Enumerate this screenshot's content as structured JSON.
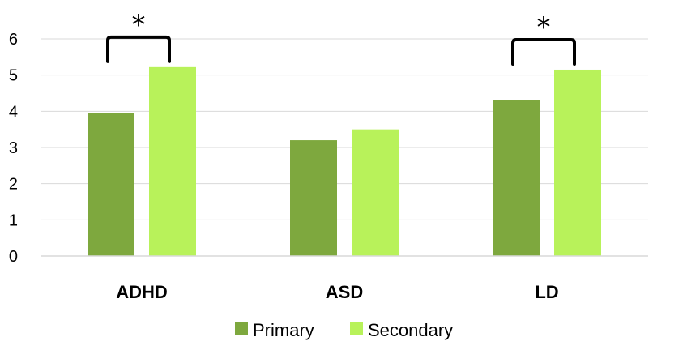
{
  "chart_data": {
    "type": "bar",
    "categories": [
      "ADHD",
      "ASD",
      "LD"
    ],
    "series": [
      {
        "name": "Primary",
        "values": [
          3.95,
          3.2,
          4.3
        ],
        "color": "#7EA83E"
      },
      {
        "name": "Secondary",
        "values": [
          5.22,
          3.5,
          5.15
        ],
        "color": "#B8F25A"
      }
    ],
    "ylim": [
      0,
      6
    ],
    "yticks": [
      "0",
      "1",
      "2",
      "3",
      "4",
      "5",
      "6"
    ],
    "grid": true,
    "legend_placement": "bottom",
    "annotations": [
      {
        "category": "ADHD",
        "text": "*"
      },
      {
        "category": "LD",
        "text": "*"
      }
    ]
  }
}
